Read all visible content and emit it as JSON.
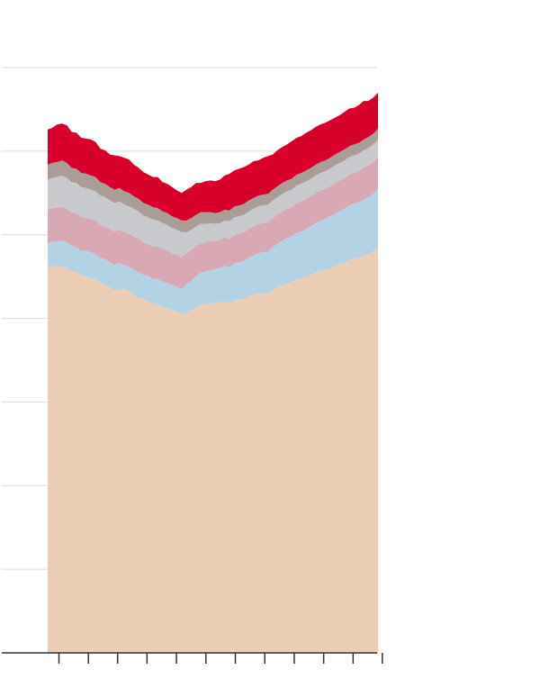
{
  "chart_data": {
    "type": "area",
    "stacked": true,
    "grid": true,
    "legend": "none",
    "ylim": [
      0,
      7
    ],
    "x": [
      0,
      1,
      2,
      3,
      4,
      5,
      6,
      7,
      8,
      9,
      10,
      11,
      12,
      13,
      14,
      15,
      16,
      17,
      18,
      19,
      20,
      21,
      22,
      23,
      24,
      25,
      26,
      27,
      28,
      29,
      30,
      31,
      32,
      33,
      34,
      35,
      36,
      37,
      38,
      39,
      40,
      41,
      42,
      43,
      44,
      45,
      46,
      47,
      48,
      49,
      50,
      51,
      52,
      53,
      54,
      55,
      56,
      57,
      58,
      59,
      60,
      61,
      62,
      63,
      64,
      65,
      66,
      67,
      68,
      69
    ],
    "xlim": [
      -6,
      75
    ],
    "x_ticks": [
      2.35,
      8.5,
      14.6,
      20.75,
      26.9,
      33.05,
      39.2,
      45.35,
      51.5,
      57.65,
      63.8,
      69.9
    ],
    "series": [
      {
        "color": "#ebcdb4",
        "values": [
          4.6,
          4.62,
          4.63,
          4.62,
          4.6,
          4.57,
          4.55,
          4.52,
          4.5,
          4.48,
          4.47,
          4.43,
          4.4,
          4.37,
          4.33,
          4.35,
          4.35,
          4.32,
          4.28,
          4.25,
          4.23,
          4.2,
          4.18,
          4.17,
          4.13,
          4.12,
          4.1,
          4.08,
          4.05,
          4.07,
          4.1,
          4.13,
          4.17,
          4.17,
          4.18,
          4.18,
          4.2,
          4.2,
          4.18,
          4.22,
          4.23,
          4.23,
          4.27,
          4.28,
          4.3,
          4.3,
          4.3,
          4.33,
          4.37,
          4.4,
          4.42,
          4.43,
          4.47,
          4.48,
          4.5,
          4.52,
          4.55,
          4.57,
          4.58,
          4.6,
          4.62,
          4.65,
          4.67,
          4.7,
          4.72,
          4.73,
          4.75,
          4.77,
          4.8,
          4.85
        ]
      },
      {
        "color": "#b3d2e3",
        "values": [
          0.3,
          0.3,
          0.29,
          0.31,
          0.31,
          0.3,
          0.3,
          0.29,
          0.31,
          0.31,
          0.3,
          0.29,
          0.31,
          0.3,
          0.31,
          0.31,
          0.29,
          0.3,
          0.3,
          0.3,
          0.29,
          0.31,
          0.29,
          0.3,
          0.31,
          0.3,
          0.3,
          0.3,
          0.3,
          0.34,
          0.35,
          0.38,
          0.38,
          0.39,
          0.4,
          0.41,
          0.4,
          0.43,
          0.43,
          0.44,
          0.44,
          0.46,
          0.46,
          0.47,
          0.48,
          0.49,
          0.5,
          0.52,
          0.52,
          0.53,
          0.54,
          0.55,
          0.55,
          0.56,
          0.57,
          0.58,
          0.59,
          0.6,
          0.61,
          0.62,
          0.63,
          0.63,
          0.64,
          0.65,
          0.65,
          0.66,
          0.67,
          0.68,
          0.69,
          0.7
        ]
      },
      {
        "color": "#d9a8b5",
        "values": [
          0.4,
          0.4,
          0.4,
          0.41,
          0.4,
          0.4,
          0.41,
          0.4,
          0.39,
          0.4,
          0.4,
          0.4,
          0.39,
          0.4,
          0.4,
          0.4,
          0.39,
          0.39,
          0.4,
          0.4,
          0.39,
          0.38,
          0.39,
          0.39,
          0.39,
          0.39,
          0.38,
          0.38,
          0.38,
          0.37,
          0.37,
          0.36,
          0.35,
          0.35,
          0.35,
          0.34,
          0.34,
          0.34,
          0.34,
          0.34,
          0.34,
          0.34,
          0.34,
          0.35,
          0.35,
          0.35,
          0.35,
          0.35,
          0.35,
          0.35,
          0.35,
          0.35,
          0.36,
          0.36,
          0.36,
          0.36,
          0.36,
          0.36,
          0.36,
          0.36,
          0.37,
          0.37,
          0.37,
          0.37,
          0.37,
          0.37,
          0.38,
          0.38,
          0.38,
          0.38
        ]
      },
      {
        "color": "#c8c9cc",
        "values": [
          0.36,
          0.36,
          0.37,
          0.37,
          0.37,
          0.36,
          0.36,
          0.36,
          0.36,
          0.35,
          0.35,
          0.35,
          0.35,
          0.34,
          0.34,
          0.34,
          0.33,
          0.33,
          0.33,
          0.33,
          0.32,
          0.32,
          0.32,
          0.31,
          0.31,
          0.31,
          0.3,
          0.3,
          0.3,
          0.25,
          0.24,
          0.23,
          0.23,
          0.22,
          0.21,
          0.2,
          0.2,
          0.2,
          0.21,
          0.21,
          0.21,
          0.21,
          0.21,
          0.21,
          0.21,
          0.21,
          0.21,
          0.21,
          0.21,
          0.21,
          0.21,
          0.21,
          0.21,
          0.21,
          0.21,
          0.21,
          0.21,
          0.21,
          0.21,
          0.21,
          0.21,
          0.21,
          0.21,
          0.21,
          0.21,
          0.21,
          0.21,
          0.21,
          0.21,
          0.21
        ]
      },
      {
        "color": "#aa9c96",
        "values": [
          0.18,
          0.18,
          0.18,
          0.18,
          0.18,
          0.17,
          0.17,
          0.17,
          0.17,
          0.17,
          0.17,
          0.16,
          0.16,
          0.16,
          0.16,
          0.16,
          0.16,
          0.16,
          0.15,
          0.15,
          0.15,
          0.15,
          0.15,
          0.15,
          0.14,
          0.14,
          0.14,
          0.14,
          0.14,
          0.14,
          0.14,
          0.14,
          0.14,
          0.14,
          0.13,
          0.13,
          0.13,
          0.13,
          0.13,
          0.13,
          0.13,
          0.13,
          0.13,
          0.13,
          0.13,
          0.13,
          0.13,
          0.13,
          0.13,
          0.13,
          0.13,
          0.13,
          0.13,
          0.13,
          0.13,
          0.13,
          0.13,
          0.13,
          0.13,
          0.13,
          0.13,
          0.13,
          0.13,
          0.13,
          0.13,
          0.13,
          0.13,
          0.13,
          0.13,
          0.13
        ]
      },
      {
        "color": "#d6002a",
        "values": [
          0.42,
          0.42,
          0.45,
          0.44,
          0.45,
          0.43,
          0.43,
          0.42,
          0.42,
          0.43,
          0.42,
          0.4,
          0.4,
          0.39,
          0.41,
          0.38,
          0.4,
          0.4,
          0.38,
          0.37,
          0.37,
          0.36,
          0.36,
          0.37,
          0.35,
          0.35,
          0.35,
          0.33,
          0.33,
          0.37,
          0.37,
          0.38,
          0.35,
          0.37,
          0.38,
          0.38,
          0.39,
          0.41,
          0.44,
          0.43,
          0.44,
          0.44,
          0.43,
          0.44,
          0.42,
          0.44,
          0.45,
          0.42,
          0.43,
          0.43,
          0.43,
          0.45,
          0.44,
          0.44,
          0.45,
          0.45,
          0.45,
          0.45,
          0.45,
          0.45,
          0.44,
          0.44,
          0.45,
          0.45,
          0.44,
          0.45,
          0.46,
          0.43,
          0.43,
          0.43
        ]
      }
    ]
  }
}
